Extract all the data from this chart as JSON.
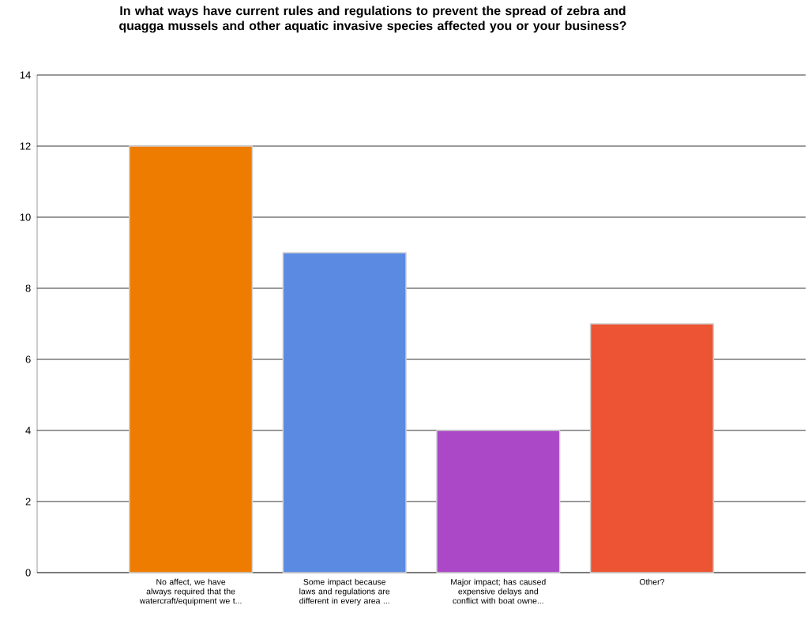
{
  "chart_data": {
    "type": "bar",
    "title": "In what ways have current rules and regulations to prevent the spread of zebra and quagga mussels and other aquatic invasive species affected you or your business?",
    "categories": [
      "No affect, we have always required that the watercraft/equipment we t...",
      "Some impact because laws and regulations are different in every area ...",
      "Major impact; has caused expensive delays and conflict with boat owne...",
      "Other?"
    ],
    "values": [
      12,
      9,
      4,
      7
    ],
    "colors": [
      "#ee7c00",
      "#5a8ae2",
      "#aa48c8",
      "#ec5434"
    ],
    "ylim": [
      0,
      14
    ],
    "yticks": [
      0,
      2,
      4,
      6,
      8,
      10,
      12,
      14
    ],
    "grid": "y"
  }
}
